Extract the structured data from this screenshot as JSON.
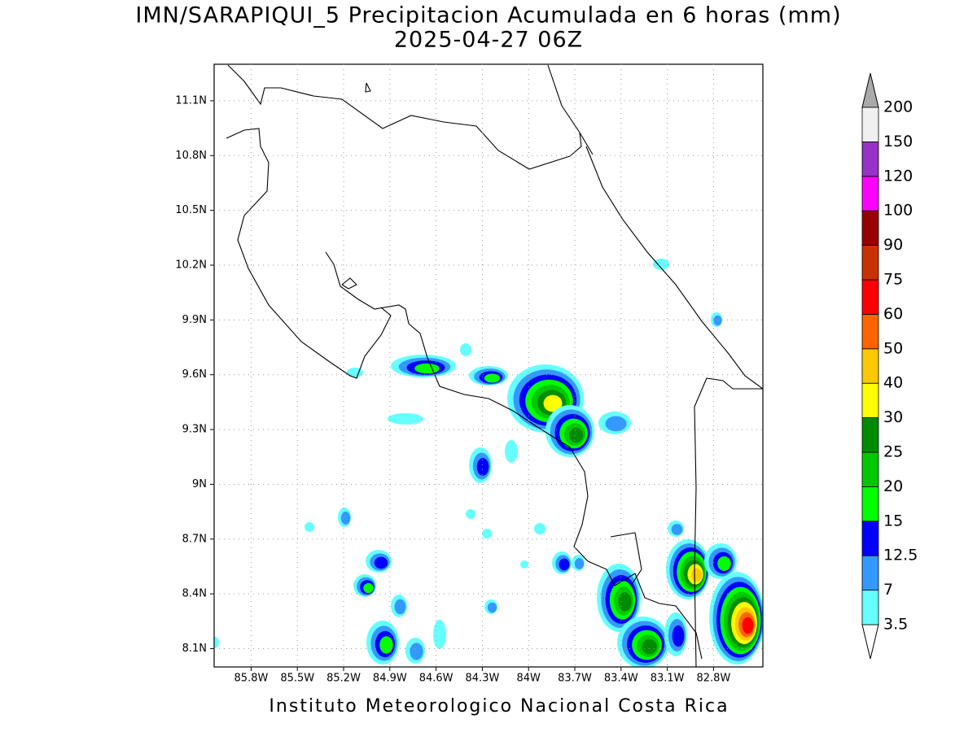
{
  "map": {
    "title": "IMN/SARAPIQUI_5 Precipitacion Acumulada en 6 horas (mm)",
    "subtitle": "2025-04-27 06Z",
    "footer": "Instituto Meteorologico Nacional Costa Rica",
    "xlim": [
      -86.04,
      -82.48
    ],
    "ylim": [
      8.0,
      11.3
    ],
    "xticks": [
      {
        "value": -85.8,
        "label": "85.8W"
      },
      {
        "value": -85.5,
        "label": "85.5W"
      },
      {
        "value": -85.2,
        "label": "85.2W"
      },
      {
        "value": -84.9,
        "label": "84.9W"
      },
      {
        "value": -84.6,
        "label": "84.6W"
      },
      {
        "value": -84.3,
        "label": "84.3W"
      },
      {
        "value": -84.0,
        "label": "84W"
      },
      {
        "value": -83.7,
        "label": "83.7W"
      },
      {
        "value": -83.4,
        "label": "83.4W"
      },
      {
        "value": -83.1,
        "label": "83.1W"
      },
      {
        "value": -82.8,
        "label": "82.8W"
      }
    ],
    "yticks": [
      {
        "value": 8.1,
        "label": "8.1N"
      },
      {
        "value": 8.4,
        "label": "8.4N"
      },
      {
        "value": 8.7,
        "label": "8.7N"
      },
      {
        "value": 9.0,
        "label": "9N"
      },
      {
        "value": 9.3,
        "label": "9.3N"
      },
      {
        "value": 9.6,
        "label": "9.6N"
      },
      {
        "value": 9.9,
        "label": "9.9N"
      },
      {
        "value": 10.2,
        "label": "10.2N"
      },
      {
        "value": 10.5,
        "label": "10.5N"
      },
      {
        "value": 10.8,
        "label": "10.8N"
      },
      {
        "value": 11.1,
        "label": "11.1N"
      }
    ],
    "grid": true,
    "colorbar": {
      "levels": [
        3.5,
        7,
        12.5,
        15,
        20,
        25,
        30,
        40,
        50,
        60,
        75,
        90,
        100,
        120,
        150,
        200
      ],
      "colors": [
        "#66ffff",
        "#3399ff",
        "#0000ff",
        "#00ff00",
        "#00c800",
        "#008c00",
        "#ffff00",
        "#ffc800",
        "#ff6400",
        "#ff0000",
        "#c83200",
        "#960000",
        "#ff00ff",
        "#9632c8",
        "#f0f0f0"
      ],
      "under_color": "#ffffff",
      "over_color": "#aaaaaa"
    }
  }
}
